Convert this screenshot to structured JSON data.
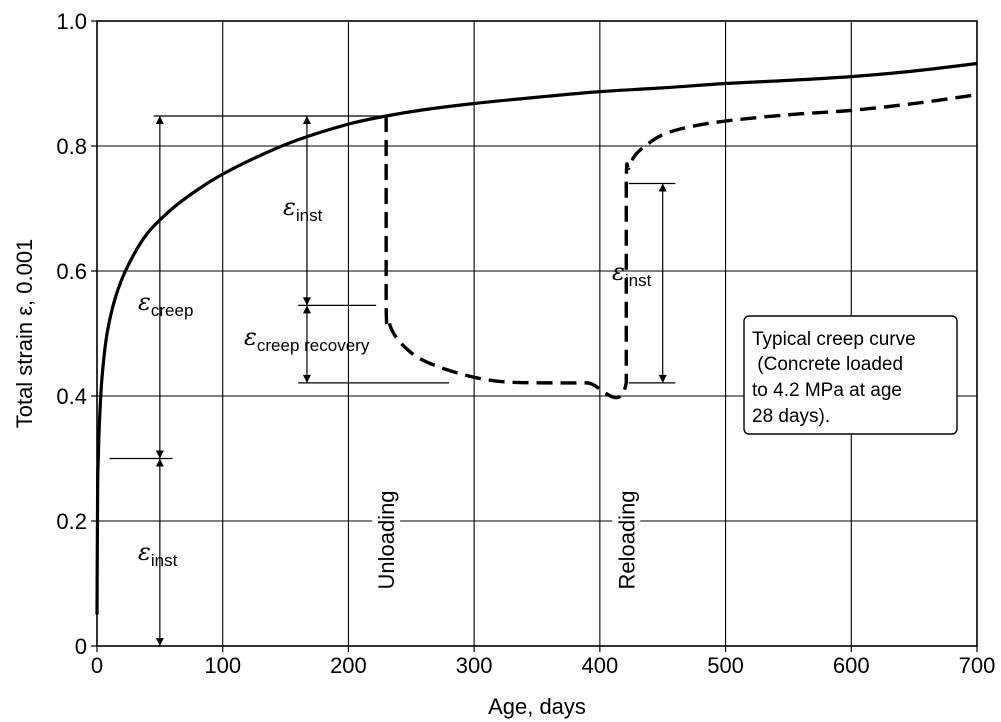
{
  "chart_data": {
    "type": "line",
    "xlabel": "Age, days",
    "ylabel": "Total strain ε, 0.001",
    "xlim": [
      0,
      700
    ],
    "ylim": [
      0,
      1.0
    ],
    "x_ticks": [
      0,
      100,
      200,
      300,
      400,
      500,
      600,
      700
    ],
    "y_ticks": [
      0,
      0.2,
      0.4,
      0.6,
      0.8,
      1.0
    ],
    "x_tick_labels": [
      "0",
      "100",
      "200",
      "300",
      "400",
      "500",
      "600",
      "700"
    ],
    "y_tick_labels": [
      "0",
      "0.2",
      "0.4",
      "0.6",
      "0.8",
      "1.0"
    ],
    "grid": true,
    "series": [
      {
        "style": "solid",
        "x": [
          0,
          0.5,
          1,
          2,
          4,
          8,
          15,
          25,
          40,
          60,
          80,
          100,
          130,
          160,
          200,
          230,
          260,
          300,
          350,
          400,
          450,
          500,
          550,
          600,
          650,
          700
        ],
        "y": [
          0.05,
          0.25,
          0.3,
          0.36,
          0.43,
          0.5,
          0.56,
          0.61,
          0.66,
          0.7,
          0.73,
          0.755,
          0.785,
          0.81,
          0.835,
          0.848,
          0.858,
          0.868,
          0.878,
          0.887,
          0.893,
          0.9,
          0.905,
          0.911,
          0.92,
          0.932
        ]
      },
      {
        "style": "dashed",
        "x": [
          230,
          230,
          232,
          236,
          244,
          255,
          270,
          290,
          310,
          330,
          360,
          390,
          421,
          421,
          423,
          428,
          436,
          450,
          470,
          500,
          550,
          600,
          650,
          700
        ],
        "y": [
          0.848,
          0.545,
          0.52,
          0.5,
          0.48,
          0.462,
          0.448,
          0.435,
          0.426,
          0.422,
          0.421,
          0.421,
          0.421,
          0.74,
          0.765,
          0.785,
          0.8,
          0.818,
          0.83,
          0.84,
          0.85,
          0.857,
          0.868,
          0.882
        ]
      }
    ],
    "annotations": {
      "creep": {
        "symbol": "ε",
        "sub": "creep"
      },
      "inst_upper": {
        "symbol": "ε",
        "sub": "inst"
      },
      "inst_lower": {
        "symbol": "ε",
        "sub": "inst"
      },
      "inst_reload": {
        "symbol": "ε",
        "sub": "inst"
      },
      "creep_recovery": {
        "symbol": "ε",
        "sub": "creep recovery"
      },
      "unloading": "Unloading",
      "reloading": "Reloading",
      "box_lines": [
        "Typical creep curve",
        " (Concrete loaded",
        "to 4.2 MPa at age",
        "28 days)."
      ]
    }
  }
}
